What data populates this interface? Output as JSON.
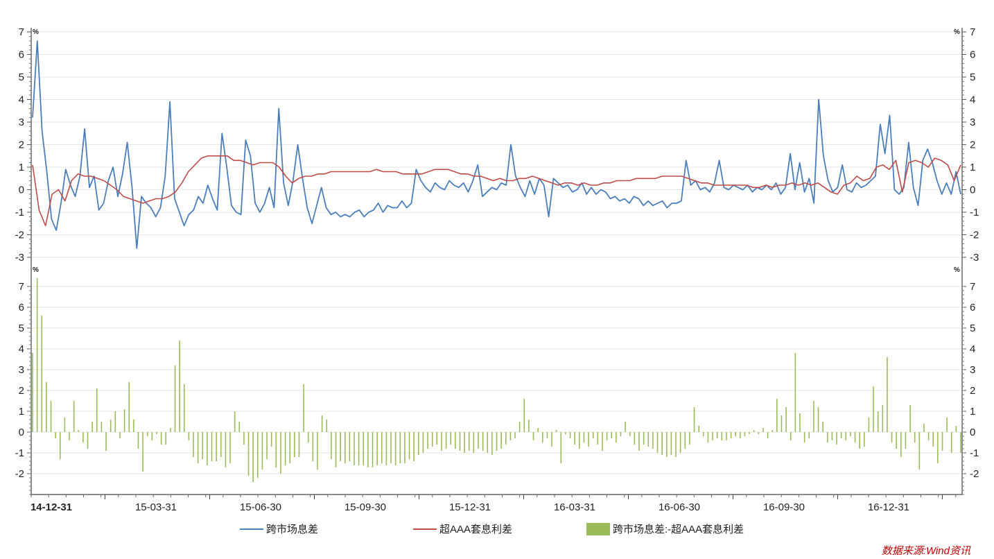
{
  "chart_data": [
    {
      "type": "line",
      "panel": "top",
      "unit": "%",
      "ylim": [
        -3,
        7
      ],
      "yticks": [
        "-3",
        "-2",
        "-1",
        "0",
        "1",
        "2",
        "3",
        "4",
        "5",
        "6",
        "7"
      ],
      "x_tick_labels": [
        "14-12-31",
        "15-03-31",
        "15-06-30",
        "15-09-30",
        "15-12-31",
        "16-03-31",
        "16-06-30",
        "16-09-30",
        "16-12-31"
      ],
      "series": [
        {
          "name": "跨市场息差",
          "color": "#4a7ebb",
          "values": [
            3.2,
            6.6,
            2.6,
            0.8,
            -1.3,
            -1.8,
            -0.6,
            0.9,
            0.2,
            -0.3,
            0.6,
            2.7,
            0.1,
            0.6,
            -0.9,
            -0.6,
            0.4,
            1.0,
            -0.3,
            0.7,
            2.1,
            0.1,
            -2.6,
            -0.3,
            -0.6,
            -0.8,
            -1.2,
            -0.8,
            0.6,
            3.9,
            -0.4,
            -1.0,
            -1.6,
            -1.1,
            -0.9,
            -0.3,
            -0.6,
            0.2,
            -0.4,
            -0.9,
            2.5,
            1.0,
            -0.7,
            -1.0,
            -1.1,
            2.2,
            1.5,
            -0.6,
            -1.0,
            -0.6,
            0.1,
            -0.8,
            3.6,
            0.3,
            -0.7,
            0.4,
            2.0,
            0.5,
            -0.8,
            -1.5,
            -0.7,
            0.1,
            -0.8,
            -1.1,
            -1.0,
            -1.2,
            -1.1,
            -1.2,
            -1.0,
            -0.9,
            -1.2,
            -1.0,
            -0.9,
            -0.6,
            -1.0,
            -0.7,
            -0.8,
            -0.8,
            -0.5,
            -0.8,
            -0.6,
            0.9,
            0.4,
            0.1,
            -0.1,
            0.3,
            0.1,
            0.0,
            0.4,
            0.2,
            0.1,
            0.3,
            -0.1,
            0.4,
            1.1,
            -0.3,
            -0.1,
            0.1,
            0.0,
            0.3,
            0.2,
            2.0,
            0.6,
            0.1,
            -0.3,
            0.4,
            -0.2,
            0.5,
            0.2,
            -1.2,
            0.5,
            0.3,
            0.1,
            0.2,
            -0.1,
            0.0,
            0.3,
            -0.2,
            0.1,
            -0.2,
            0.0,
            -0.1,
            -0.4,
            -0.3,
            -0.5,
            -0.4,
            -0.6,
            -0.3,
            -0.4,
            -0.7,
            -0.5,
            -0.7,
            -0.6,
            -0.5,
            -0.8,
            -0.6,
            -0.6,
            -0.5,
            1.3,
            0.2,
            0.4,
            0.0,
            0.1,
            -0.1,
            0.3,
            1.3,
            0.1,
            0.0,
            0.2,
            0.1,
            0.0,
            0.2,
            -0.1,
            0.1,
            0.0,
            0.2,
            0.0,
            0.3,
            -0.2,
            0.1,
            1.6,
            0.0,
            1.2,
            -0.1,
            0.5,
            -0.6,
            4.0,
            1.5,
            0.4,
            -0.1,
            0.1,
            1.1,
            0.0,
            -0.1,
            0.3,
            0.1,
            0.2,
            0.4,
            0.6,
            2.9,
            1.6,
            3.3,
            0.0,
            -0.2,
            0.1,
            2.1,
            0.1,
            -0.7,
            1.3,
            1.8,
            1.2,
            0.4,
            -0.2,
            0.3,
            -0.2,
            0.8,
            -0.2
          ]
        },
        {
          "name": "超AAA套息利差",
          "color": "#be4b48",
          "values": [
            1.1,
            -0.9,
            -1.6,
            -0.2,
            0.0,
            -0.5,
            0.4,
            0.7,
            0.6,
            0.6,
            0.5,
            0.4,
            0.2,
            0.0,
            -0.3,
            -0.4,
            -0.5,
            -0.6,
            -0.5,
            -0.4,
            -0.4,
            -0.3,
            -0.1,
            0.3,
            0.8,
            1.1,
            1.4,
            1.5,
            1.5,
            1.5,
            1.5,
            1.3,
            1.3,
            1.2,
            1.1,
            1.2,
            1.2,
            1.2,
            1.0,
            0.6,
            0.3,
            0.5,
            0.6,
            0.6,
            0.7,
            0.7,
            0.8,
            0.8,
            0.8,
            0.8,
            0.8,
            0.8,
            0.8,
            0.9,
            0.8,
            0.8,
            0.8,
            0.7,
            0.7,
            0.7,
            0.7,
            0.8,
            0.9,
            0.9,
            0.9,
            0.8,
            0.7,
            0.7,
            0.6,
            0.6,
            0.5,
            0.4,
            0.5,
            0.4,
            0.4,
            0.5,
            0.5,
            0.6,
            0.5,
            0.4,
            0.3,
            0.2,
            0.3,
            0.3,
            0.2,
            0.3,
            0.2,
            0.2,
            0.3,
            0.3,
            0.4,
            0.4,
            0.4,
            0.5,
            0.5,
            0.5,
            0.5,
            0.6,
            0.6,
            0.6,
            0.6,
            0.5,
            0.4,
            0.3,
            0.3,
            0.2,
            0.2,
            0.2,
            0.2,
            0.2,
            0.2,
            0.1,
            0.1,
            0.2,
            0.1,
            0.2,
            0.2,
            0.3,
            0.2,
            0.3,
            0.2,
            0.3,
            0.1,
            -0.1,
            -0.2,
            0.2,
            0.3,
            0.6,
            0.4,
            0.5,
            1.0,
            1.1,
            0.9,
            1.3,
            -0.1,
            1.2,
            1.3,
            1.2,
            1.0,
            1.4,
            1.3,
            1.1,
            0.4,
            1.1
          ]
        }
      ]
    },
    {
      "type": "bar",
      "panel": "bottom",
      "unit": "%",
      "ylim": [
        -3,
        8
      ],
      "yticks": [
        "-2",
        "-1",
        "0",
        "1",
        "2",
        "3",
        "4",
        "5",
        "6",
        "7"
      ],
      "series": [
        {
          "name": "跨市场息差:-超AAA套息利差",
          "color": "#9bbb59",
          "values": [
            3.8,
            7.4,
            5.6,
            2.4,
            1.5,
            -0.3,
            -1.3,
            0.7,
            -0.4,
            1.5,
            0.1,
            -0.5,
            -0.8,
            0.5,
            2.1,
            0.5,
            -0.9,
            0.6,
            1.0,
            -0.3,
            1.1,
            2.4,
            0.6,
            -0.8,
            -1.9,
            -0.2,
            -0.4,
            -0.1,
            -0.6,
            -0.6,
            0.2,
            3.2,
            4.4,
            2.3,
            -0.4,
            -1.2,
            -1.5,
            -1.3,
            -1.6,
            -1.4,
            -1.4,
            -1.2,
            -1.7,
            -1.5,
            1.0,
            0.5,
            -0.6,
            -2.1,
            -2.4,
            -2.2,
            -1.8,
            -1.3,
            -0.7,
            -1.7,
            -2.0,
            -1.6,
            -1.5,
            -1.2,
            -1.2,
            2.3,
            -0.5,
            -1.4,
            -1.8,
            0.8,
            0.6,
            -1.3,
            -1.7,
            -1.4,
            -1.5,
            -1.4,
            -1.6,
            -1.6,
            -1.6,
            -1.7,
            -1.7,
            -1.6,
            -1.5,
            -1.6,
            -1.5,
            -1.6,
            -1.5,
            -1.5,
            -1.3,
            -1.4,
            -1.1,
            -1.0,
            -0.8,
            -0.7,
            -0.6,
            -0.9,
            -0.8,
            -0.6,
            -0.8,
            -0.9,
            -1.0,
            -0.9,
            -1.0,
            -0.8,
            -0.9,
            -1.0,
            -1.1,
            -0.9,
            -0.8,
            -0.6,
            -0.4,
            -0.3,
            0.5,
            1.6,
            0.6,
            -0.4,
            0.2,
            -0.5,
            -0.3,
            -0.7,
            0.1,
            -1.5,
            -0.1,
            -0.3,
            -0.6,
            -0.8,
            -0.5,
            -0.7,
            -0.3,
            -0.6,
            -0.9,
            -0.4,
            -0.3,
            -0.5,
            -0.2,
            0.5,
            -0.2,
            -0.6,
            -0.9,
            -0.6,
            -0.7,
            -0.8,
            -1.0,
            -1.1,
            -1.2,
            -1.1,
            -1.2,
            -1.0,
            -0.8,
            -0.6,
            1.2,
            0.3,
            -0.2,
            -0.5,
            -0.4,
            -0.3,
            -0.4,
            -0.4,
            -0.3,
            -0.2,
            -0.3,
            -0.2,
            -0.1,
            0.1,
            -0.1,
            0.2,
            -0.3,
            0.1,
            1.6,
            0.8,
            1.2,
            -0.4,
            3.8,
            0.9,
            -0.5,
            -0.3,
            1.5,
            1.2,
            0.5,
            -0.5,
            -0.4,
            -0.6,
            -0.3,
            -0.4,
            -0.2,
            -0.5,
            -0.8,
            -0.7,
            0.7,
            2.2,
            1.0,
            1.3,
            3.6,
            -0.5,
            -0.8,
            -1.2,
            -0.8,
            1.3,
            -0.5,
            -1.8,
            0.4,
            -0.4,
            -0.7,
            -1.5,
            -0.9,
            0.7,
            -1.0,
            0.3,
            -1.0
          ]
        }
      ]
    }
  ],
  "legend": [
    {
      "label": "跨市场息差",
      "kind": "line",
      "color": "#4a7ebb"
    },
    {
      "label": "超AAA套息利差",
      "kind": "line",
      "color": "#be4b48"
    },
    {
      "label": "跨市场息差:-超AAA套息利差",
      "kind": "box",
      "color": "#9bbb59"
    }
  ],
  "source": "数据来源:Wind资讯"
}
